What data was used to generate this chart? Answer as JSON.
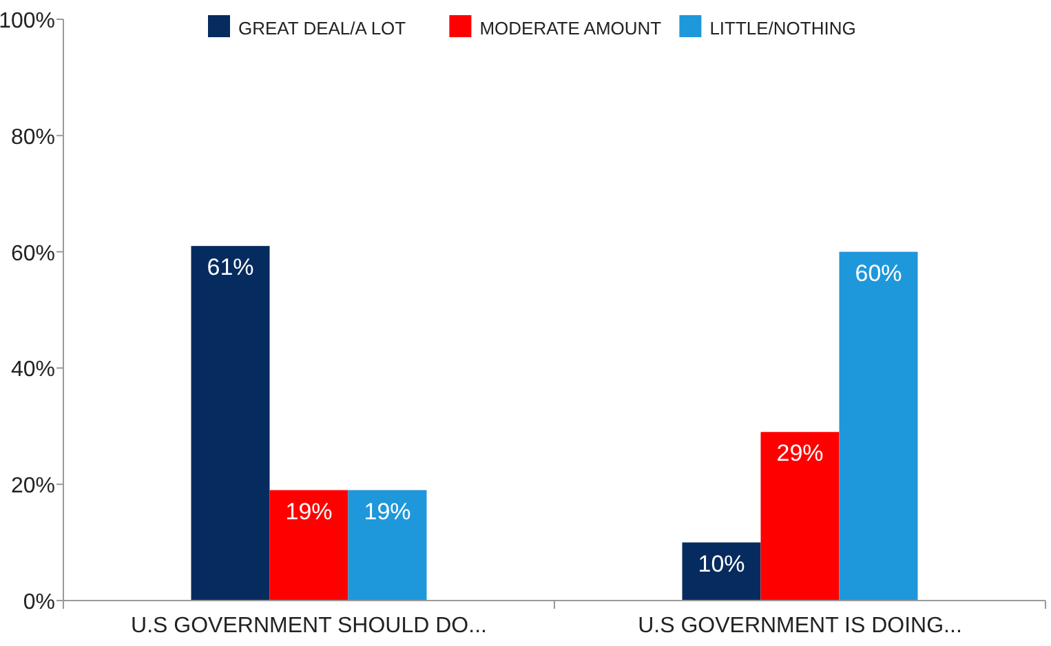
{
  "chart_data": {
    "type": "bar",
    "categories": [
      "U.S GOVERNMENT SHOULD DO...",
      "U.S GOVERNMENT IS DOING..."
    ],
    "series": [
      {
        "name": "GREAT DEAL/A LOT",
        "color": "#062b5f",
        "values": [
          61,
          10
        ]
      },
      {
        "name": "MODERATE AMOUNT",
        "color": "#ff0000",
        "values": [
          19,
          29
        ]
      },
      {
        "name": "LITTLE/NOTHING",
        "color": "#1f97db",
        "values": [
          19,
          60
        ]
      }
    ],
    "ylim": [
      0,
      100
    ],
    "yticks": [
      {
        "value": 0,
        "label": "0%"
      },
      {
        "value": 20,
        "label": "20%"
      },
      {
        "value": 40,
        "label": "40%"
      },
      {
        "value": 60,
        "label": "60%"
      },
      {
        "value": 80,
        "label": "80%"
      },
      {
        "value": 100,
        "label": "100%"
      }
    ],
    "value_labels": [
      [
        "61%",
        "10%"
      ],
      [
        "19%",
        "29%"
      ],
      [
        "19%",
        "60%"
      ]
    ],
    "grid": false,
    "legend": "top"
  }
}
